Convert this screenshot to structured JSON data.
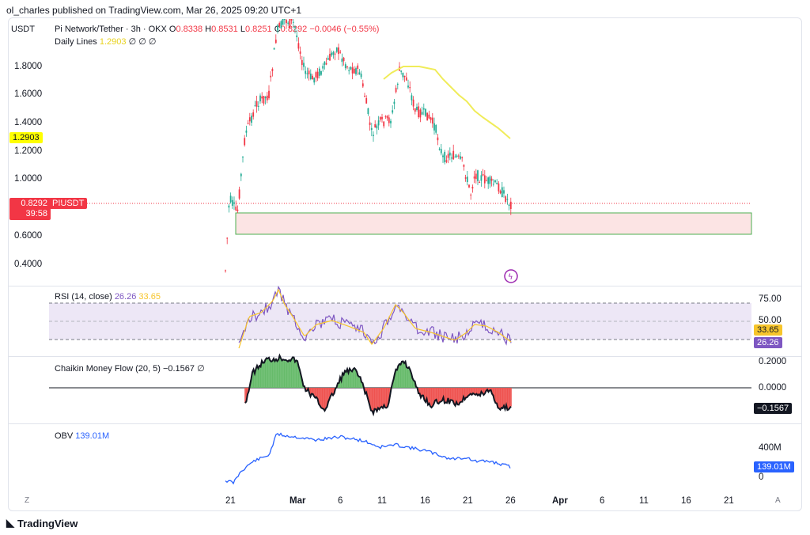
{
  "header": {
    "publisher": "ol_charles published on TradingView.com, Mar 26, 2025 09:20 UTC+1"
  },
  "price_pane": {
    "currency": "USDT",
    "symbol_line": "Pi Network/Tether · 3h · OKX",
    "o_label": "O",
    "o_value": "0.8338",
    "h_label": "H",
    "h_value": "0.8531",
    "l_label": "L",
    "l_value": "0.8251",
    "c_label": "C",
    "c_value": "0.8292",
    "change": "−0.0046 (−0.55%)",
    "daily_lines_label": "Daily Lines",
    "daily_lines_value": "1.2903",
    "daily_lines_flags": "∅ ∅ ∅",
    "y_ticks": [
      "1.8000",
      "1.6000",
      "1.4000",
      "1.2000",
      "1.0000",
      "0.6000",
      "0.4000"
    ],
    "yellow_tag": "1.2903",
    "price_tag": "0.8292",
    "countdown": "39:58",
    "symbol_tag": "PIUSDT",
    "line_color": "#f0ec5a",
    "up_color": "#22ab94",
    "down_color": "#f23645"
  },
  "rsi_pane": {
    "label": "RSI (14, close)",
    "value1": "26.26",
    "value2": "33.65",
    "ticks": [
      "75.00",
      "50.00"
    ],
    "tag1": "33.65",
    "tag2": "26.26"
  },
  "cmf_pane": {
    "label": "Chaikin Money Flow (20, 5)",
    "value": "−0.1567",
    "flag": "∅",
    "ticks": [
      "0.2000",
      "0.0000"
    ],
    "tag": "−0.1567"
  },
  "obv_pane": {
    "label": "OBV",
    "value": "139.01M",
    "ticks": [
      "400M",
      "0"
    ],
    "tag": "139.01M"
  },
  "x_axis": {
    "labels": [
      "21",
      "Mar",
      "6",
      "11",
      "16",
      "21",
      "26",
      "Apr",
      "6",
      "11",
      "16",
      "21"
    ],
    "left_button": "Z",
    "right_button": "A"
  },
  "brand": {
    "name": "TradingView"
  }
}
